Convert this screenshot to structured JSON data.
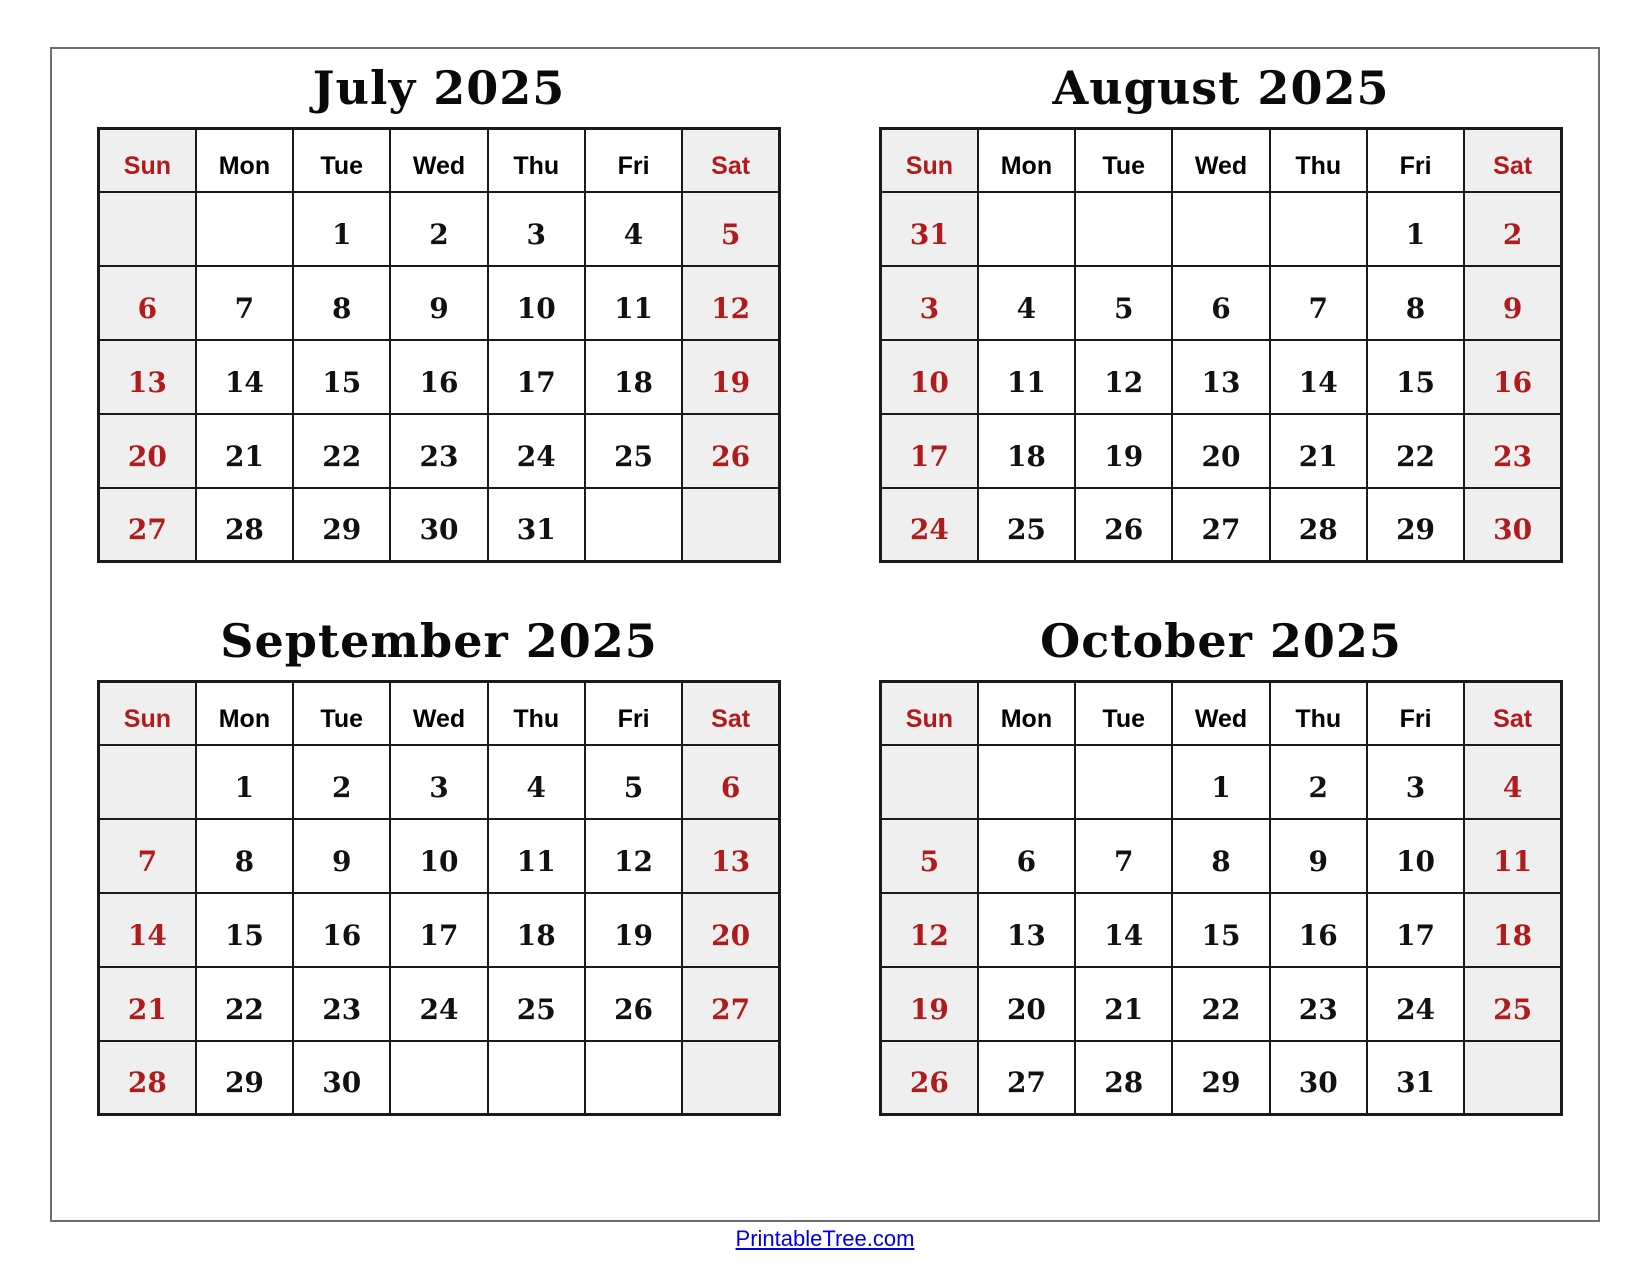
{
  "page": {
    "footer_link": "PrintableTree.com"
  },
  "colors": {
    "accent_red": "#b01b1e",
    "weekend_cell_bg": "#efefef",
    "grid_border": "#1a1a1a",
    "frame_border": "#6e6e6e",
    "link_blue": "#0000dd"
  },
  "weekdays": [
    "Sun",
    "Mon",
    "Tue",
    "Wed",
    "Thu",
    "Fri",
    "Sat"
  ],
  "calendars": [
    {
      "title": "July 2025",
      "weeks": [
        [
          "",
          "",
          "1",
          "2",
          "3",
          "4",
          "5"
        ],
        [
          "6",
          "7",
          "8",
          "9",
          "10",
          "11",
          "12"
        ],
        [
          "13",
          "14",
          "15",
          "16",
          "17",
          "18",
          "19"
        ],
        [
          "20",
          "21",
          "22",
          "23",
          "24",
          "25",
          "26"
        ],
        [
          "27",
          "28",
          "29",
          "30",
          "31",
          "",
          ""
        ]
      ]
    },
    {
      "title": "August 2025",
      "weeks": [
        [
          "31",
          "",
          "",
          "",
          "",
          "1",
          "2"
        ],
        [
          "3",
          "4",
          "5",
          "6",
          "7",
          "8",
          "9"
        ],
        [
          "10",
          "11",
          "12",
          "13",
          "14",
          "15",
          "16"
        ],
        [
          "17",
          "18",
          "19",
          "20",
          "21",
          "22",
          "23"
        ],
        [
          "24",
          "25",
          "26",
          "27",
          "28",
          "29",
          "30"
        ]
      ]
    },
    {
      "title": "September 2025",
      "weeks": [
        [
          "",
          "1",
          "2",
          "3",
          "4",
          "5",
          "6"
        ],
        [
          "7",
          "8",
          "9",
          "10",
          "11",
          "12",
          "13"
        ],
        [
          "14",
          "15",
          "16",
          "17",
          "18",
          "19",
          "20"
        ],
        [
          "21",
          "22",
          "23",
          "24",
          "25",
          "26",
          "27"
        ],
        [
          "28",
          "29",
          "30",
          "",
          "",
          "",
          ""
        ]
      ]
    },
    {
      "title": "October 2025",
      "weeks": [
        [
          "",
          "",
          "",
          "1",
          "2",
          "3",
          "4"
        ],
        [
          "5",
          "6",
          "7",
          "8",
          "9",
          "10",
          "11"
        ],
        [
          "12",
          "13",
          "14",
          "15",
          "16",
          "17",
          "18"
        ],
        [
          "19",
          "20",
          "21",
          "22",
          "23",
          "24",
          "25"
        ],
        [
          "26",
          "27",
          "28",
          "29",
          "30",
          "31",
          ""
        ]
      ]
    }
  ]
}
